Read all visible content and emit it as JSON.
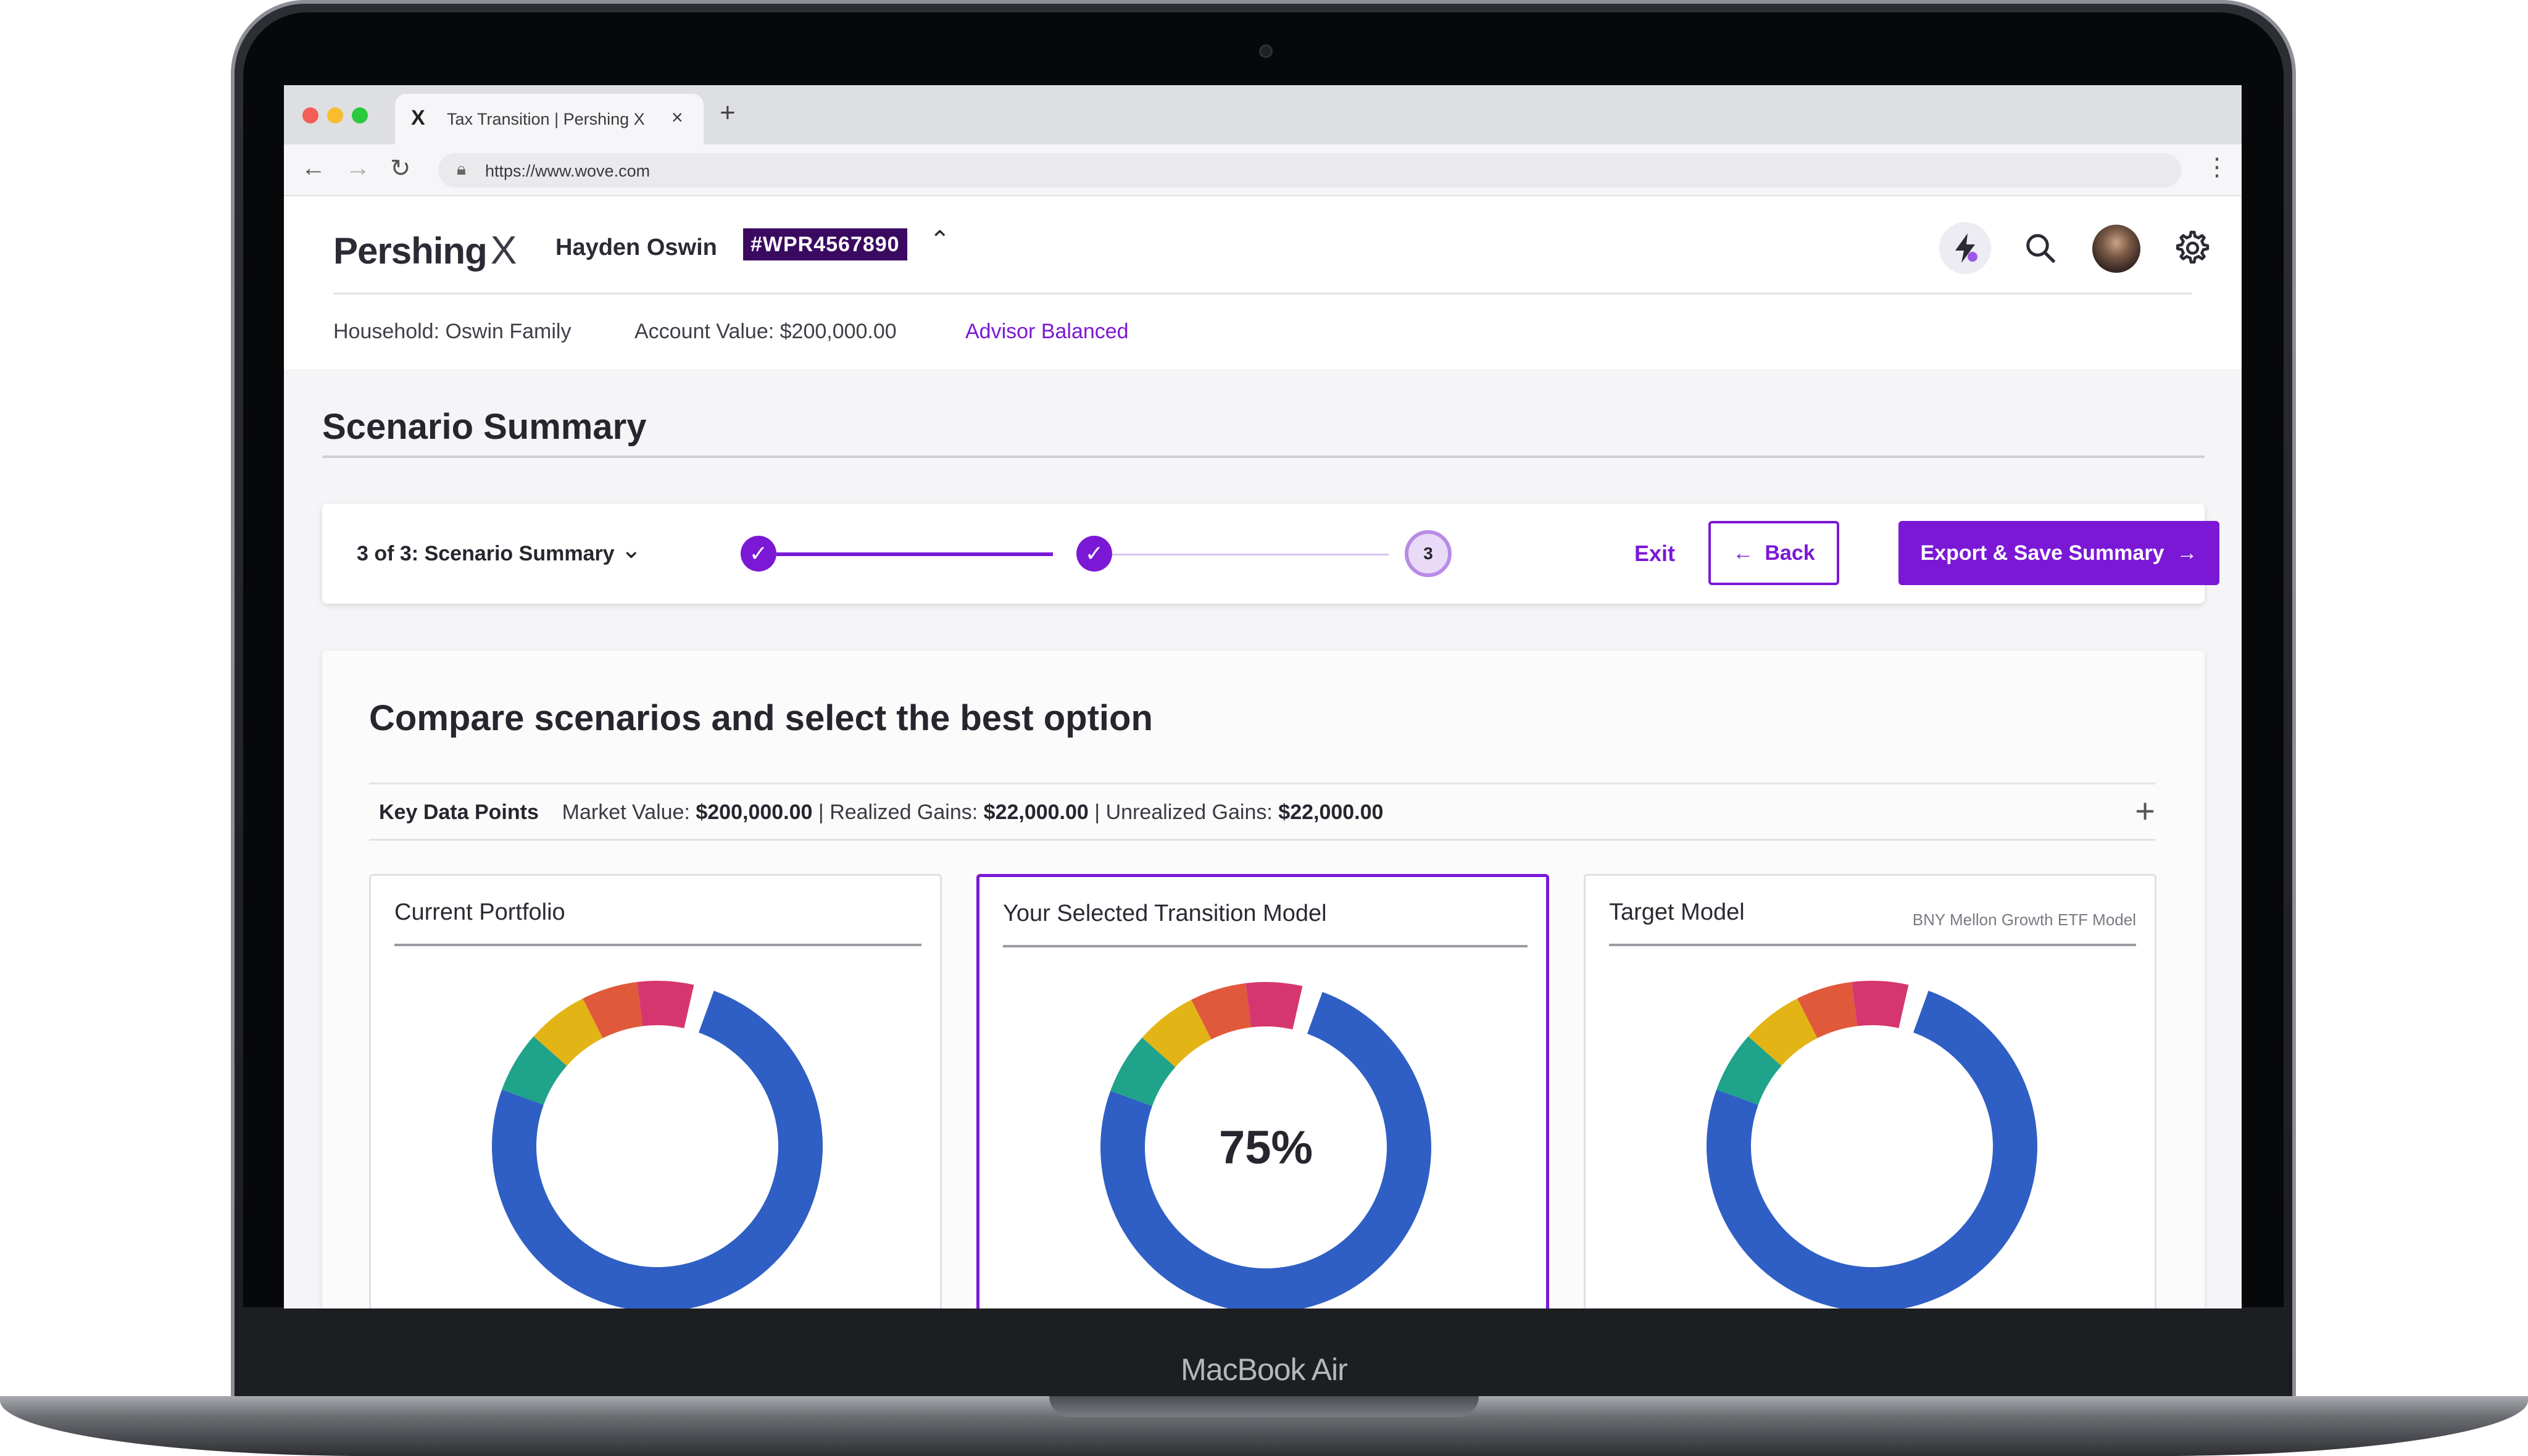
{
  "device": {
    "brand": "MacBook Air"
  },
  "browser": {
    "tab_title": "Tax Transition | Pershing X",
    "tab_favicon": "X",
    "url": "https://www.wove.com",
    "new_tab": "+",
    "close": "×"
  },
  "header": {
    "logo_text": "Pershing",
    "logo_mark": "X",
    "user_name": "Hayden Oswin",
    "account_id": "#WPR4567890",
    "household": "Household: Oswin Family",
    "account_value": "Account Value: $200,000.00",
    "strategy_link": "Advisor Balanced"
  },
  "page": {
    "title": "Scenario Summary"
  },
  "stepper": {
    "label": "3 of 3: Scenario Summary",
    "current_step": "3",
    "exit_label": "Exit",
    "back_label": "Back",
    "export_label": "Export & Save Summary",
    "accent": "#7b18d6"
  },
  "compare": {
    "title": "Compare scenarios and select the best option",
    "key_data_label": "Key Data Points",
    "market_value_label": "Market Value:",
    "market_value": "$200,000.00",
    "realized_label": "Realized Gains:",
    "realized_value": "$22,000.00",
    "unrealized_label": "Unrealized Gains:",
    "unrealized_value": "$22,000.00",
    "separator": "|",
    "expand": "+"
  },
  "cards": [
    {
      "title": "Current Portfolio",
      "subtitle": "",
      "center_label": ""
    },
    {
      "title": "Your Selected Transition Model",
      "subtitle": "",
      "center_label": "75%"
    },
    {
      "title": "Target Model",
      "subtitle": "BNY Mellon Growth ETF Model",
      "center_label": ""
    }
  ],
  "chart_data": {
    "type": "pie",
    "donut": true,
    "segments": [
      {
        "color": "#2f5fc4",
        "share": 0.75
      },
      {
        "color": "#1fa38a",
        "share": 0.06
      },
      {
        "color": "#e3b416",
        "share": 0.06
      },
      {
        "color": "#e0593a",
        "share": 0.055
      },
      {
        "color": "#d63670",
        "share": 0.055
      }
    ]
  }
}
